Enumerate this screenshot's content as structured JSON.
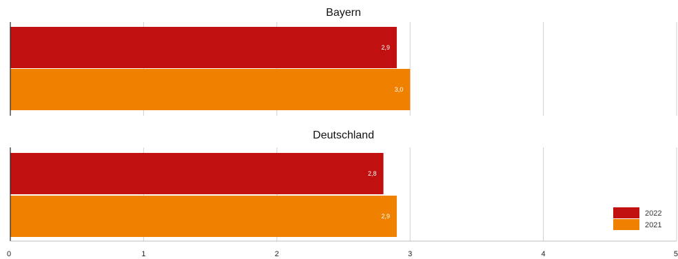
{
  "chart_data": {
    "type": "bar",
    "orientation": "horizontal",
    "panels": [
      {
        "title": "Bayern",
        "series": [
          {
            "name": "2022",
            "value": 2.9,
            "label": "2,9"
          },
          {
            "name": "2021",
            "value": 3.0,
            "label": "3,0"
          }
        ]
      },
      {
        "title": "Deutschland",
        "series": [
          {
            "name": "2022",
            "value": 2.8,
            "label": "2,8"
          },
          {
            "name": "2021",
            "value": 2.9,
            "label": "2,9"
          }
        ]
      }
    ],
    "xlim": [
      0,
      5
    ],
    "xticks": [
      0,
      1,
      2,
      3,
      4,
      5
    ],
    "xtick_labels": [
      "0",
      "1",
      "2",
      "3",
      "4",
      "5"
    ],
    "grid": true,
    "legend": {
      "placement": "bottom-right",
      "entries": [
        {
          "name": "2022",
          "color": "#c0100f"
        },
        {
          "name": "2021",
          "color": "#f08000"
        }
      ]
    },
    "colors": {
      "2022": "#c0100f",
      "2021": "#f08000"
    }
  }
}
